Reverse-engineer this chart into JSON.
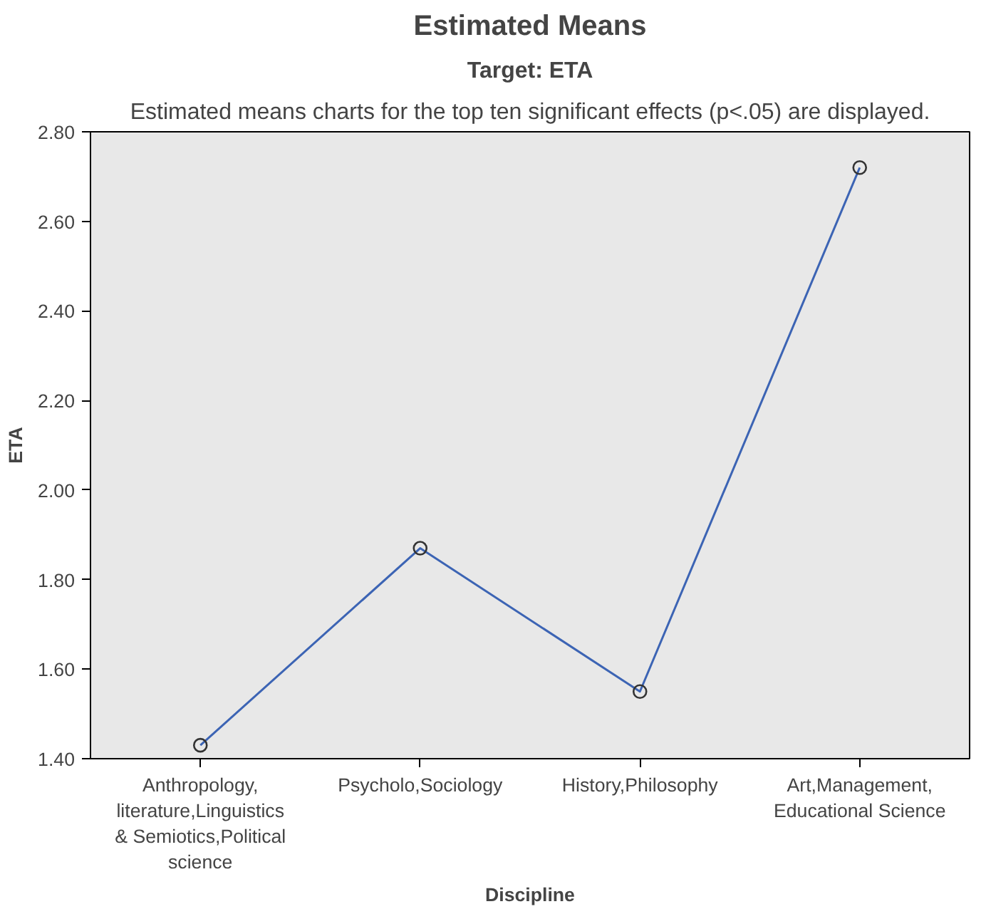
{
  "chart_data": {
    "type": "line",
    "title": "Estimated Means",
    "subtitle": "Target: ETA",
    "annotations": [
      "Estimated means charts for the top ten significant effects (p<.05) are displayed."
    ],
    "xlabel": "Discipline",
    "ylabel": "ETA",
    "categories": [
      "Anthropology,\nliterature,Linguistics\n& Semiotics,Political\nscience",
      "Psycholo,Sociology",
      "History,Philosophy",
      "Art,Management,\nEducational Science"
    ],
    "series": [
      {
        "color": "#3c64b4",
        "values": [
          1.43,
          1.87,
          1.55,
          2.72
        ]
      }
    ],
    "ylim": [
      1.4,
      2.8
    ],
    "yticks": [
      {
        "value": 1.4,
        "label": "1.40"
      },
      {
        "value": 1.6,
        "label": "1.60"
      },
      {
        "value": 1.8,
        "label": "1.80"
      },
      {
        "value": 2.0,
        "label": "2.00"
      },
      {
        "value": 2.2,
        "label": "2.20"
      },
      {
        "value": 2.4,
        "label": "2.40"
      },
      {
        "value": 2.6,
        "label": "2.60"
      },
      {
        "value": 2.8,
        "label": "2.80"
      }
    ],
    "marker": "circle",
    "line_style": "solid",
    "grid": false
  }
}
